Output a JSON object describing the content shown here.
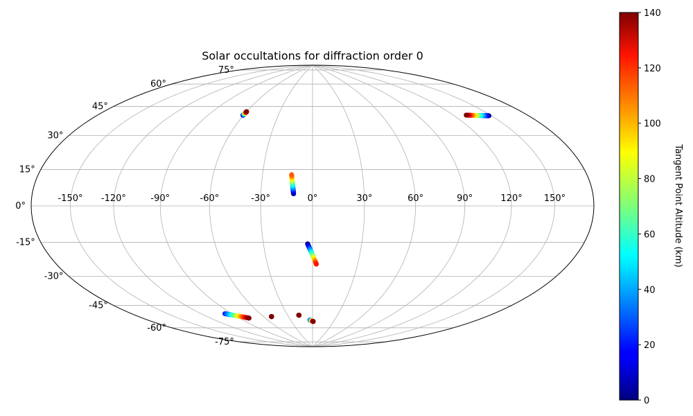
{
  "chart_data": {
    "type": "scatter",
    "projection": "hammer",
    "title": "Solar occultations for diffraction order 0",
    "xlabel": "",
    "ylabel": "",
    "grid": true,
    "lon_ticks": [
      -150,
      -120,
      -90,
      -60,
      -30,
      0,
      30,
      60,
      90,
      120,
      150
    ],
    "lon_tick_labels": [
      "-150°",
      "-120°",
      "-90°",
      "-60°",
      "-30°",
      "0°",
      "30°",
      "60°",
      "90°",
      "120°",
      "150°"
    ],
    "lat_ticks": [
      -75,
      -60,
      -45,
      -30,
      -15,
      0,
      15,
      30,
      45,
      60,
      75
    ],
    "lat_tick_labels": [
      "-75°",
      "-60°",
      "-45°",
      "-30°",
      "-15°",
      "0°",
      "15°",
      "30°",
      "45°",
      "60°",
      "75°"
    ],
    "colorbar": {
      "label": "Tangent Point Altitude (km)",
      "min": 0,
      "max": 140,
      "ticks": [
        0,
        20,
        40,
        60,
        80,
        100,
        120,
        140
      ],
      "tick_labels": [
        "0",
        "20",
        "40",
        "60",
        "80",
        "100",
        "120",
        "140"
      ],
      "colormap": "jet"
    },
    "series": [
      {
        "lon_start": -60.5,
        "lat_start": 52.7,
        "lon_end": -60.0,
        "lat_end": 55.0,
        "alt_start": 0,
        "alt_end": 140
      },
      {
        "lon_start": 148.0,
        "lat_start": 44.5,
        "lon_end": 130.5,
        "lat_end": 47.0,
        "alt_start": 0,
        "alt_end": 140
      },
      {
        "lon_start": -11.0,
        "lat_start": 7.0,
        "lon_end": -12.5,
        "lat_end": 18.0,
        "alt_start": 0,
        "alt_end": 110
      },
      {
        "lon_start": -3.0,
        "lat_start": -22.0,
        "lon_end": 2.5,
        "lat_end": -34.0,
        "alt_start": 0,
        "alt_end": 120
      },
      {
        "lon_start": -97.0,
        "lat_start": -61.5,
        "lon_end": -79.0,
        "lat_end": -66.0,
        "alt_start": 20,
        "alt_end": 140
      },
      {
        "lon_start": -3.5,
        "lat_start": -70.0,
        "lon_end": 1.0,
        "lat_end": -71.0,
        "alt_start": 15,
        "alt_end": 140
      },
      {
        "lon_start": -50.5,
        "lat_start": -66.5,
        "lon_end": -50.5,
        "lat_end": -66.5,
        "alt_start": 140,
        "alt_end": 140
      },
      {
        "lon_start": -16.5,
        "lat_start": -66.5,
        "lon_end": -16.5,
        "lat_end": -66.5,
        "alt_start": 140,
        "alt_end": 140
      }
    ]
  }
}
